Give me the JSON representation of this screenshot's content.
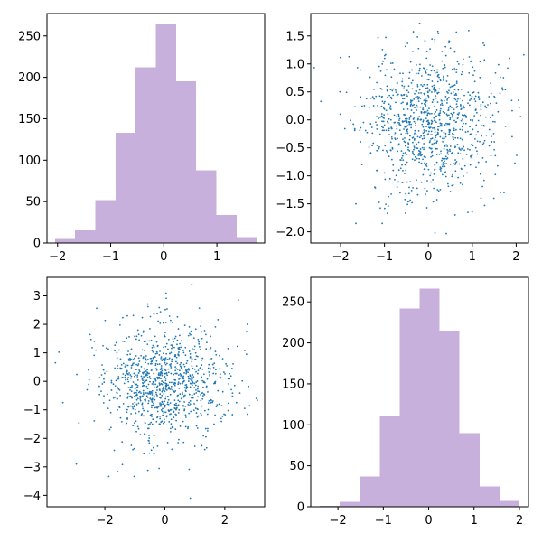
{
  "colors": {
    "hist": "#c7b1dc",
    "scatter": "#1f77b4",
    "axes": "#000000"
  },
  "chart_data": [
    {
      "type": "bar",
      "subtype": "histogram",
      "bin_edges": [
        -2.05,
        -1.67,
        -1.29,
        -0.91,
        -0.53,
        -0.15,
        0.23,
        0.61,
        0.99,
        1.37,
        1.75
      ],
      "values": [
        5,
        15,
        52,
        133,
        212,
        264,
        195,
        88,
        34,
        7
      ],
      "xlim": [
        -2.2,
        1.9
      ],
      "ylim": [
        0,
        277
      ],
      "xticks": [
        "-2",
        "-1",
        "0",
        "1"
      ],
      "xtick_values": [
        -2,
        -1,
        0,
        1
      ],
      "yticks": [
        "0",
        "50",
        "100",
        "150",
        "200",
        "250"
      ],
      "ytick_values": [
        0,
        50,
        100,
        150,
        200,
        250
      ],
      "grid": false,
      "legend": "none"
    },
    {
      "type": "scatter",
      "n_points": 1000,
      "seed": 11,
      "mean": [
        0,
        0
      ],
      "std": [
        0.75,
        0.65
      ],
      "extremes": [
        [
          -2.45,
          0.33
        ],
        [
          2.05,
          0.35
        ],
        [
          -0.2,
          1.72
        ],
        [
          0.15,
          -2.02
        ],
        [
          -1.65,
          -1.85
        ],
        [
          1.85,
          1.1
        ],
        [
          -1.65,
          -1.5
        ],
        [
          1.25,
          1.37
        ]
      ],
      "xlim": [
        -2.68,
        2.28
      ],
      "ylim": [
        -2.2,
        1.9
      ],
      "xticks": [
        "-2",
        "-1",
        "0",
        "1",
        "2"
      ],
      "xtick_values": [
        -2,
        -1,
        0,
        1,
        2
      ],
      "yticks": [
        "-2.0",
        "-1.5",
        "-1.0",
        "-0.5",
        "0.0",
        "0.5",
        "1.0",
        "1.5"
      ],
      "ytick_values": [
        -2.0,
        -1.5,
        -1.0,
        -0.5,
        0.0,
        0.5,
        1.0,
        1.5
      ],
      "grid": false,
      "legend": "none"
    },
    {
      "type": "scatter",
      "n_points": 1000,
      "seed": 29,
      "mean": [
        0,
        0
      ],
      "std": [
        1.05,
        1.0
      ],
      "extremes": [
        [
          -3.65,
          0.65
        ],
        [
          3.05,
          -0.6
        ],
        [
          0.85,
          -4.1
        ],
        [
          0.9,
          3.4
        ],
        [
          -2.95,
          -2.9
        ],
        [
          2.45,
          2.85
        ],
        [
          -1.25,
          2.3
        ],
        [
          2.75,
          2.0
        ]
      ],
      "xlim": [
        -3.93,
        3.33
      ],
      "ylim": [
        -4.4,
        3.65
      ],
      "xticks": [
        "-2",
        "0",
        "2"
      ],
      "xtick_values": [
        -2,
        0,
        2
      ],
      "yticks": [
        "-4",
        "-3",
        "-2",
        "-1",
        "0",
        "1",
        "2",
        "3"
      ],
      "ytick_values": [
        -4,
        -3,
        -2,
        -1,
        0,
        1,
        2,
        3
      ],
      "grid": false,
      "legend": "none"
    },
    {
      "type": "bar",
      "subtype": "histogram",
      "bin_edges": [
        -2.4,
        -1.96,
        -1.52,
        -1.08,
        -0.64,
        -0.2,
        0.24,
        0.68,
        1.12,
        1.56,
        2.0
      ],
      "values": [
        1,
        6,
        37,
        111,
        242,
        266,
        215,
        90,
        25,
        7
      ],
      "xlim": [
        -2.6,
        2.2
      ],
      "ylim": [
        0,
        280
      ],
      "xticks": [
        "-2",
        "-1",
        "0",
        "1",
        "2"
      ],
      "xtick_values": [
        -2,
        -1,
        0,
        1,
        2
      ],
      "yticks": [
        "0",
        "50",
        "100",
        "150",
        "200",
        "250"
      ],
      "ytick_values": [
        0,
        50,
        100,
        150,
        200,
        250
      ],
      "grid": false,
      "legend": "none"
    }
  ]
}
